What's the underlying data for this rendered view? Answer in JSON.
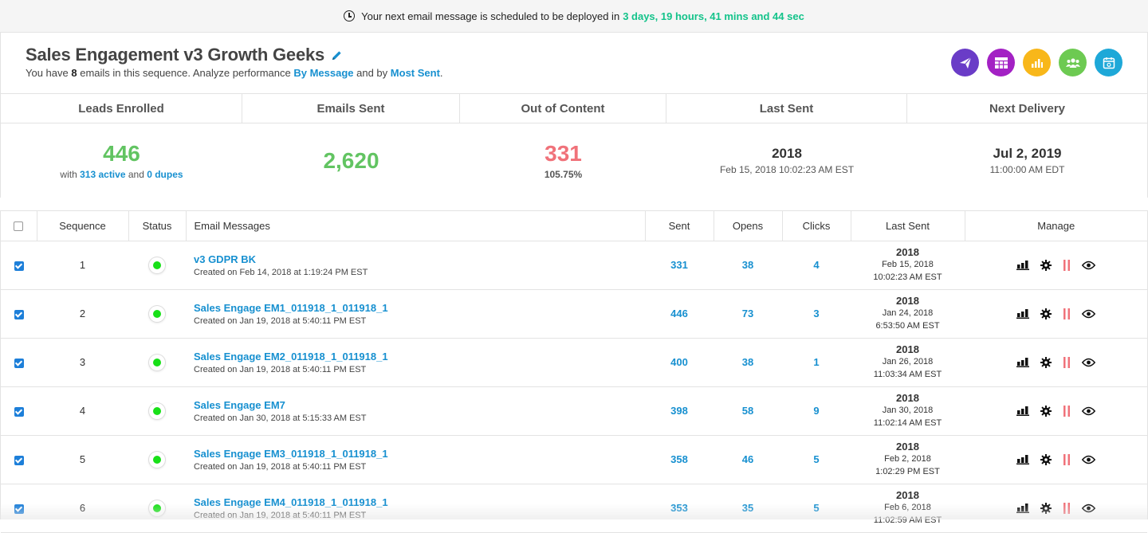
{
  "banner": {
    "text": "Your next email message is scheduled to be deployed in",
    "countdown": "3 days, 19 hours, 41 mins and 44 sec"
  },
  "header": {
    "title": "Sales Engagement v3 Growth Geeks",
    "subtitle_pre": "You have",
    "email_count": "8",
    "subtitle_mid": "emails in this sequence. Analyze performance",
    "link_by_message": "By Message",
    "subtitle_and": "and by",
    "link_most_sent": "Most Sent",
    "subtitle_end": ".",
    "icons": [
      {
        "name": "send-icon",
        "color": "#6a3cc7"
      },
      {
        "name": "table-icon",
        "color": "#a321c4"
      },
      {
        "name": "bar-chart-icon",
        "color": "#f8b71a"
      },
      {
        "name": "users-icon",
        "color": "#6dca52"
      },
      {
        "name": "calendar-icon",
        "color": "#1ea8d8"
      }
    ]
  },
  "stats": {
    "headers": [
      "Leads Enrolled",
      "Emails Sent",
      "Out of Content",
      "Last Sent",
      "Next Delivery"
    ],
    "leads_enrolled": "446",
    "leads_with": "with",
    "leads_active": "313 active",
    "leads_and": "and",
    "leads_dupes": "0 dupes",
    "emails_sent": "2,620",
    "out_of_content": "331",
    "out_of_content_pct": "105.75%",
    "last_sent_year": "2018",
    "last_sent_datetime": "Feb 15, 2018 10:02:23 AM EST",
    "next_delivery_date": "Jul 2, 2019",
    "next_delivery_time": "11:00:00 AM EDT"
  },
  "table": {
    "columns": [
      "Sequence",
      "Status",
      "Email Messages",
      "Sent",
      "Opens",
      "Clicks",
      "Last Sent",
      "Manage"
    ],
    "rows": [
      {
        "seq": "1",
        "name": "v3 GDPR BK",
        "created": "Created on Feb 14, 2018 at 1:19:24 PM EST",
        "sent": "331",
        "opens": "38",
        "clicks": "4",
        "year": "2018",
        "date": "Feb 15, 2018",
        "time": "10:02:23 AM EST"
      },
      {
        "seq": "2",
        "name": "Sales Engage EM1_011918_1_011918_1",
        "created": "Created on Jan 19, 2018 at 5:40:11 PM EST",
        "sent": "446",
        "opens": "73",
        "clicks": "3",
        "year": "2018",
        "date": "Jan 24, 2018",
        "time": "6:53:50 AM EST"
      },
      {
        "seq": "3",
        "name": "Sales Engage EM2_011918_1_011918_1",
        "created": "Created on Jan 19, 2018 at 5:40:11 PM EST",
        "sent": "400",
        "opens": "38",
        "clicks": "1",
        "year": "2018",
        "date": "Jan 26, 2018",
        "time": "11:03:34 AM EST"
      },
      {
        "seq": "4",
        "name": "Sales Engage EM7",
        "created": "Created on Jan 30, 2018 at 5:15:33 AM EST",
        "sent": "398",
        "opens": "58",
        "clicks": "9",
        "year": "2018",
        "date": "Jan 30, 2018",
        "time": "11:02:14 AM EST"
      },
      {
        "seq": "5",
        "name": "Sales Engage EM3_011918_1_011918_1",
        "created": "Created on Jan 19, 2018 at 5:40:11 PM EST",
        "sent": "358",
        "opens": "46",
        "clicks": "5",
        "year": "2018",
        "date": "Feb 2, 2018",
        "time": "1:02:29 PM EST"
      },
      {
        "seq": "6",
        "name": "Sales Engage EM4_011918_1_011918_1",
        "created": "Created on Jan 19, 2018 at 5:40:11 PM EST",
        "sent": "353",
        "opens": "35",
        "clicks": "5",
        "year": "2018",
        "date": "Feb 6, 2018",
        "time": "11:02:59 AM EST"
      }
    ]
  },
  "colors": {
    "link": "#1790d0",
    "countdown": "#13c38a",
    "green": "#62c462",
    "red": "#f0727a",
    "pause": "#f0727a"
  }
}
